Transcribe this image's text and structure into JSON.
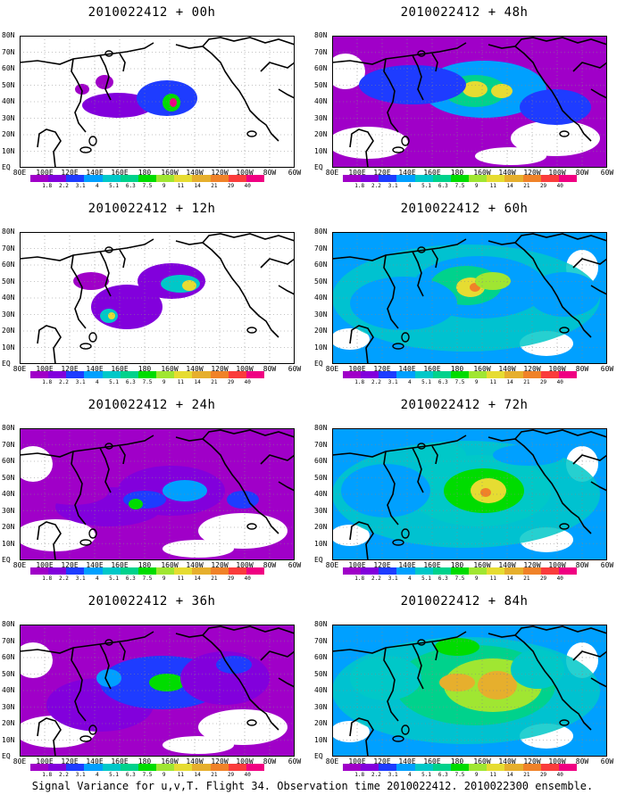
{
  "caption": "Signal Variance for u,v,T. Flight 34. Observation time 2010022412. 2010022300 ensemble.",
  "lat_labels": [
    "80N",
    "70N",
    "60N",
    "50N",
    "40N",
    "30N",
    "20N",
    "10N",
    "EQ"
  ],
  "lon_labels": [
    "80E",
    "100E",
    "120E",
    "140E",
    "160E",
    "180",
    "160W",
    "140W",
    "120W",
    "100W",
    "80W",
    "60W"
  ],
  "colorbar": {
    "ticks": [
      "1.8",
      "2.2",
      "3.1",
      "4",
      "5.1",
      "6.3",
      "7.5",
      "9",
      "11",
      "14",
      "21",
      "29",
      "40"
    ],
    "colors": [
      "#a000c8",
      "#8200dc",
      "#1e3cff",
      "#00a0ff",
      "#00c8c8",
      "#00d28c",
      "#00dc00",
      "#a0e632",
      "#e6dc32",
      "#e6af2d",
      "#f08228",
      "#fa3c3c",
      "#f00082"
    ]
  },
  "panels": [
    {
      "title": "2010022412 + 00h"
    },
    {
      "title": "2010022412 + 12h"
    },
    {
      "title": "2010022412 + 24h"
    },
    {
      "title": "2010022412 + 36h"
    },
    {
      "title": "2010022412 + 48h"
    },
    {
      "title": "2010022412 + 60h"
    },
    {
      "title": "2010022412 + 72h"
    },
    {
      "title": "2010022412 + 84h"
    }
  ]
}
